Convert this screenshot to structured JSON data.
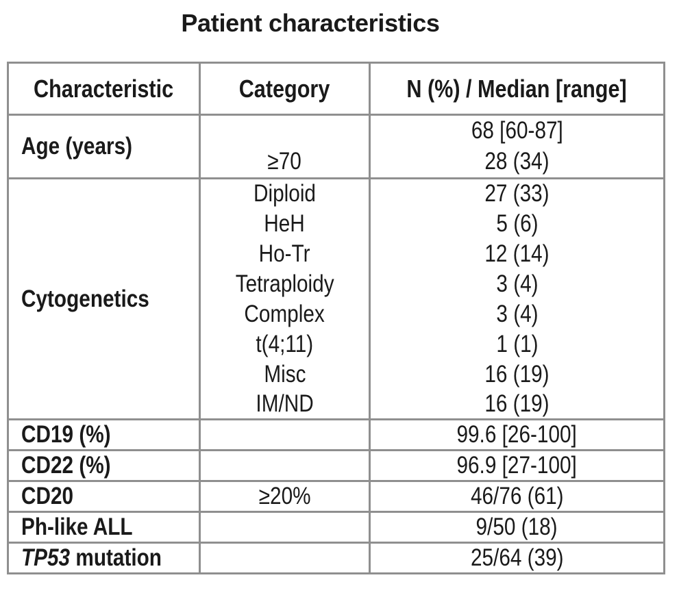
{
  "title": "Patient characteristics",
  "colors": {
    "border": "#8f8f8f",
    "text": "#1a1a1a",
    "background": "#ffffff"
  },
  "table": {
    "headers": {
      "characteristic": "Characteristic",
      "category": "Category",
      "value": "N (%) / Median [range]"
    },
    "sections": [
      {
        "characteristic": "Age (years)",
        "rows": [
          {
            "category": "",
            "value": "68 [60-87]"
          },
          {
            "category": "≥70",
            "value": "28 (34)"
          }
        ]
      },
      {
        "characteristic": "Cytogenetics",
        "rows": [
          {
            "category": "Diploid",
            "value": "27 (33)"
          },
          {
            "category": "HeH",
            "value": "5 (6)"
          },
          {
            "category": "Ho-Tr",
            "value": "12 (14)"
          },
          {
            "category": "Tetraploidy",
            "value": "3 (4)"
          },
          {
            "category": "Complex",
            "value": "3 (4)"
          },
          {
            "category": "t(4;11)",
            "value": "1 (1)"
          },
          {
            "category": "Misc",
            "value": "16 (19)"
          },
          {
            "category": "IM/ND",
            "value": "16 (19)"
          }
        ]
      },
      {
        "characteristic": "CD19 (%)",
        "rows": [
          {
            "category": "",
            "value": "99.6 [26-100]"
          }
        ]
      },
      {
        "characteristic": "CD22 (%)",
        "rows": [
          {
            "category": "",
            "value": "96.9 [27-100]"
          }
        ]
      },
      {
        "characteristic": "CD20",
        "rows": [
          {
            "category": "≥20%",
            "value": "46/76 (61)"
          }
        ]
      },
      {
        "characteristic": "Ph-like ALL",
        "rows": [
          {
            "category": "",
            "value": "9/50 (18)"
          }
        ]
      },
      {
        "characteristic_italic": "TP53",
        "characteristic_rest": " mutation",
        "rows": [
          {
            "category": "",
            "value": "25/64 (39)"
          }
        ]
      }
    ]
  }
}
